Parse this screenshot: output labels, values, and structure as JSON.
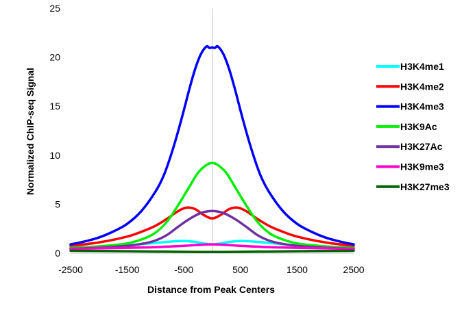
{
  "chart_data": {
    "type": "line",
    "title": "",
    "xlabel": "Distance from Peak Centers",
    "ylabel": "Normalized ChIP-seq Signal",
    "xlim": [
      -2500,
      2500
    ],
    "ylim": [
      0,
      25
    ],
    "xticks": [
      -2500,
      -1500,
      -500,
      500,
      1500,
      2500
    ],
    "yticks": [
      0,
      5,
      10,
      15,
      20,
      25
    ],
    "grid": false,
    "center_line_at": 0,
    "legend_position": "right",
    "series": [
      {
        "name": "H3K4me1",
        "color": "#00ffff",
        "points": [
          [
            -2500,
            0.55
          ],
          [
            -2000,
            0.65
          ],
          [
            -1500,
            0.8
          ],
          [
            -1000,
            1.05
          ],
          [
            -700,
            1.2
          ],
          [
            -500,
            1.25
          ],
          [
            -300,
            1.15
          ],
          [
            -150,
            1.0
          ],
          [
            0,
            0.9
          ],
          [
            150,
            1.0
          ],
          [
            300,
            1.15
          ],
          [
            500,
            1.25
          ],
          [
            700,
            1.2
          ],
          [
            1000,
            1.05
          ],
          [
            1500,
            0.8
          ],
          [
            2000,
            0.65
          ],
          [
            2500,
            0.55
          ]
        ]
      },
      {
        "name": "H3K4me2",
        "color": "#ff0000",
        "points": [
          [
            -2500,
            0.75
          ],
          [
            -2000,
            1.1
          ],
          [
            -1500,
            1.7
          ],
          [
            -1200,
            2.3
          ],
          [
            -1000,
            2.8
          ],
          [
            -800,
            3.5
          ],
          [
            -600,
            4.3
          ],
          [
            -450,
            4.65
          ],
          [
            -300,
            4.5
          ],
          [
            -150,
            3.9
          ],
          [
            0,
            3.55
          ],
          [
            150,
            3.9
          ],
          [
            300,
            4.5
          ],
          [
            450,
            4.65
          ],
          [
            600,
            4.3
          ],
          [
            800,
            3.5
          ],
          [
            1000,
            2.8
          ],
          [
            1200,
            2.3
          ],
          [
            1500,
            1.7
          ],
          [
            2000,
            1.1
          ],
          [
            2500,
            0.75
          ]
        ]
      },
      {
        "name": "H3K4me3",
        "color": "#0000ff",
        "points": [
          [
            -2500,
            0.9
          ],
          [
            -2250,
            1.2
          ],
          [
            -2000,
            1.6
          ],
          [
            -1750,
            2.2
          ],
          [
            -1500,
            3.0
          ],
          [
            -1250,
            4.3
          ],
          [
            -1000,
            6.3
          ],
          [
            -850,
            8.0
          ],
          [
            -700,
            10.5
          ],
          [
            -550,
            13.5
          ],
          [
            -400,
            16.8
          ],
          [
            -300,
            18.8
          ],
          [
            -200,
            20.3
          ],
          [
            -100,
            21.1
          ],
          [
            -50,
            20.95
          ],
          [
            0,
            21.0
          ],
          [
            50,
            20.95
          ],
          [
            100,
            21.1
          ],
          [
            200,
            20.3
          ],
          [
            300,
            18.8
          ],
          [
            400,
            16.8
          ],
          [
            550,
            13.5
          ],
          [
            700,
            10.5
          ],
          [
            850,
            8.0
          ],
          [
            1000,
            6.3
          ],
          [
            1250,
            4.3
          ],
          [
            1500,
            3.0
          ],
          [
            1750,
            2.2
          ],
          [
            2000,
            1.6
          ],
          [
            2250,
            1.2
          ],
          [
            2500,
            0.9
          ]
        ]
      },
      {
        "name": "H3K9Ac",
        "color": "#00ee00",
        "points": [
          [
            -2500,
            0.55
          ],
          [
            -2000,
            0.7
          ],
          [
            -1500,
            1.0
          ],
          [
            -1200,
            1.5
          ],
          [
            -1000,
            2.1
          ],
          [
            -800,
            3.2
          ],
          [
            -600,
            4.9
          ],
          [
            -400,
            6.8
          ],
          [
            -250,
            8.2
          ],
          [
            -100,
            9.0
          ],
          [
            0,
            9.2
          ],
          [
            100,
            9.0
          ],
          [
            250,
            8.2
          ],
          [
            400,
            6.8
          ],
          [
            600,
            4.9
          ],
          [
            800,
            3.2
          ],
          [
            1000,
            2.1
          ],
          [
            1200,
            1.5
          ],
          [
            1500,
            1.0
          ],
          [
            2000,
            0.7
          ],
          [
            2500,
            0.55
          ]
        ]
      },
      {
        "name": "H3K27Ac",
        "color": "#7030a0",
        "points": [
          [
            -2500,
            0.45
          ],
          [
            -2000,
            0.55
          ],
          [
            -1500,
            0.75
          ],
          [
            -1200,
            1.0
          ],
          [
            -1000,
            1.3
          ],
          [
            -800,
            1.85
          ],
          [
            -600,
            2.7
          ],
          [
            -400,
            3.5
          ],
          [
            -200,
            4.1
          ],
          [
            0,
            4.3
          ],
          [
            200,
            4.1
          ],
          [
            400,
            3.5
          ],
          [
            600,
            2.7
          ],
          [
            800,
            1.85
          ],
          [
            1000,
            1.3
          ],
          [
            1200,
            1.0
          ],
          [
            1500,
            0.75
          ],
          [
            2000,
            0.55
          ],
          [
            2500,
            0.45
          ]
        ]
      },
      {
        "name": "H3K9me3",
        "color": "#ff00cc",
        "points": [
          [
            -2500,
            0.45
          ],
          [
            -2000,
            0.5
          ],
          [
            -1500,
            0.55
          ],
          [
            -1000,
            0.62
          ],
          [
            -500,
            0.75
          ],
          [
            -250,
            0.85
          ],
          [
            0,
            0.9
          ],
          [
            250,
            0.85
          ],
          [
            500,
            0.75
          ],
          [
            1000,
            0.62
          ],
          [
            1500,
            0.55
          ],
          [
            2000,
            0.5
          ],
          [
            2500,
            0.45
          ]
        ]
      },
      {
        "name": "H3K27me3",
        "color": "#006400",
        "points": [
          [
            -2500,
            0.25
          ],
          [
            -2000,
            0.23
          ],
          [
            -1500,
            0.2
          ],
          [
            -1000,
            0.17
          ],
          [
            -500,
            0.14
          ],
          [
            0,
            0.12
          ],
          [
            500,
            0.14
          ],
          [
            1000,
            0.17
          ],
          [
            1500,
            0.2
          ],
          [
            2000,
            0.23
          ],
          [
            2500,
            0.25
          ]
        ]
      }
    ]
  }
}
